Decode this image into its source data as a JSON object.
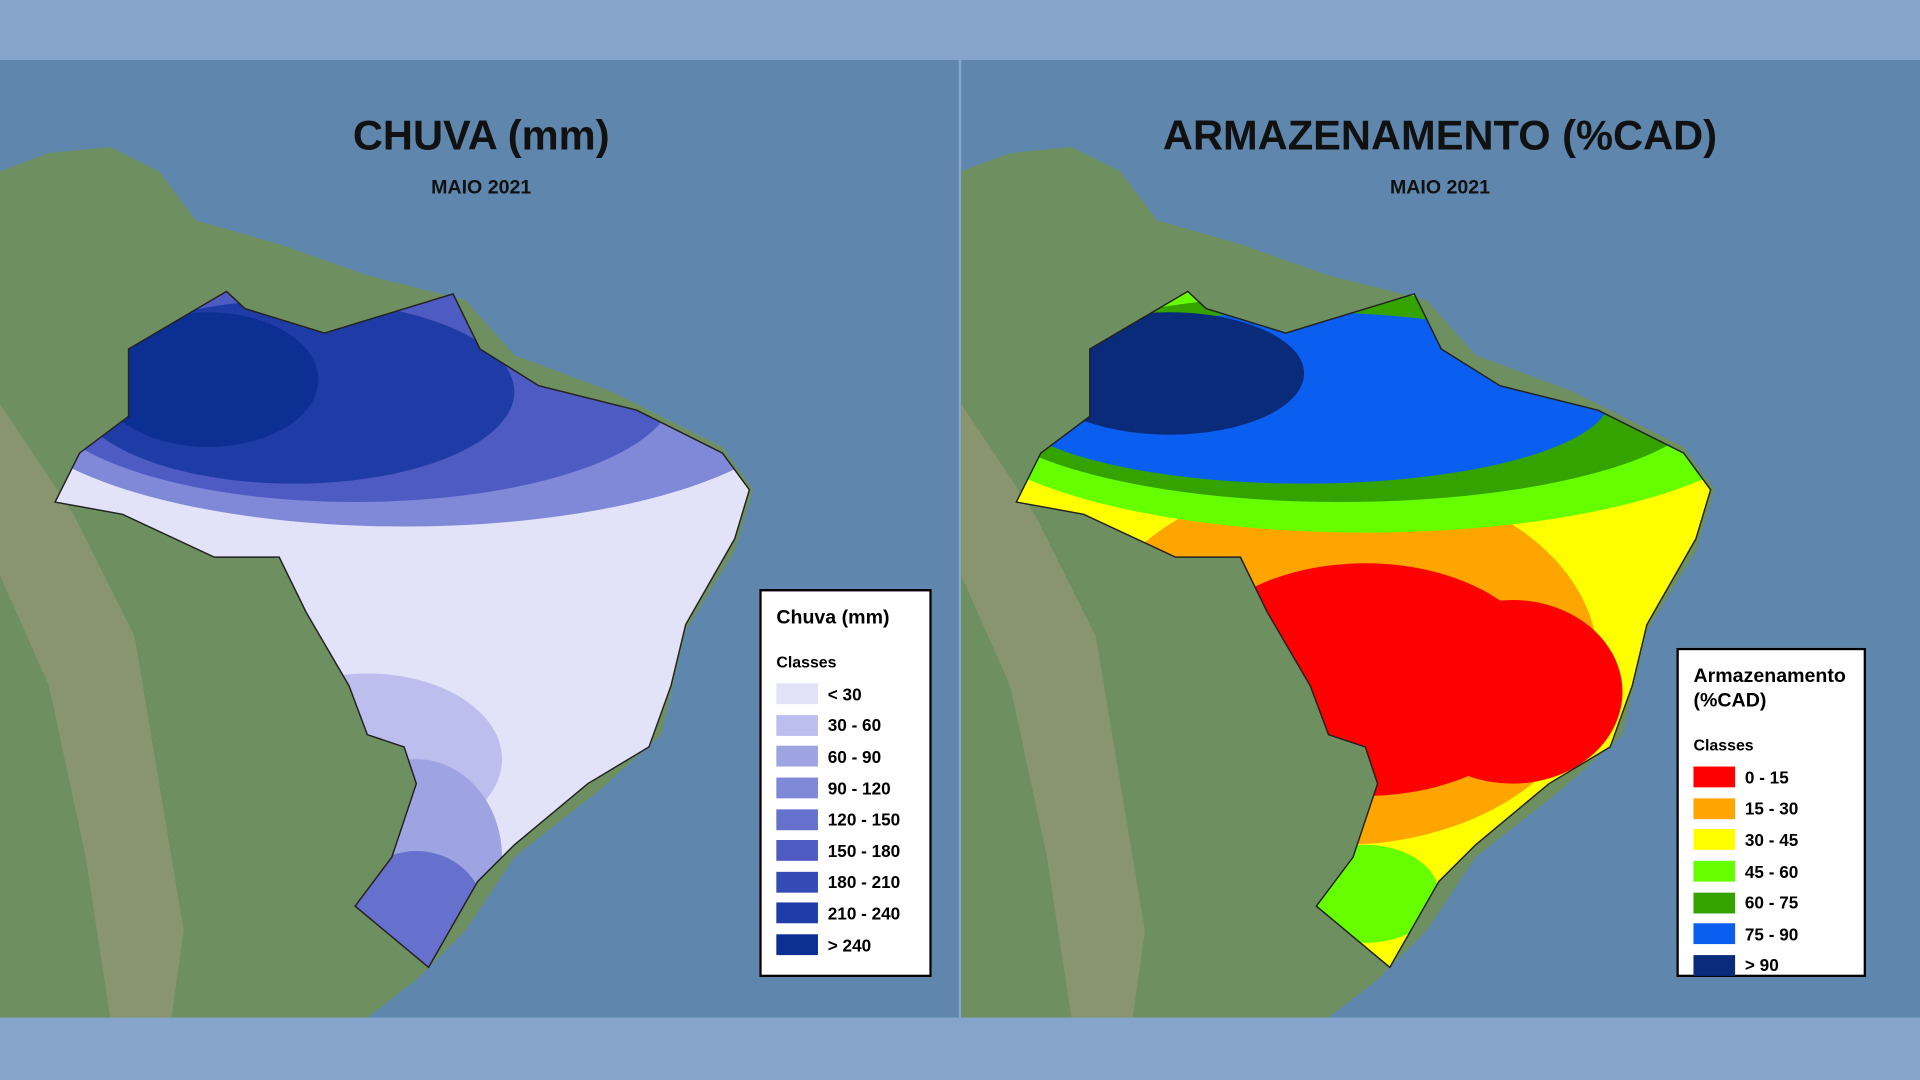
{
  "panels": [
    {
      "title": "CHUVA (mm)",
      "subtitle": "MAIO 2021",
      "legend": {
        "title": "Chuva (mm)",
        "subtitle": "Classes",
        "items": [
          {
            "label": "< 30",
            "color": "#e2e2f8"
          },
          {
            "label": "30 - 60",
            "color": "#bcbfee"
          },
          {
            "label": "60 - 90",
            "color": "#9ea3e2"
          },
          {
            "label": "90 - 120",
            "color": "#8088d8"
          },
          {
            "label": "120 - 150",
            "color": "#6670cd"
          },
          {
            "label": "150 - 180",
            "color": "#4e5bc3"
          },
          {
            "label": "180 - 210",
            "color": "#344ab5"
          },
          {
            "label": "210 - 240",
            "color": "#1f3ca6"
          },
          {
            "label": "> 240",
            "color": "#0c2f94"
          }
        ]
      }
    },
    {
      "title": "ARMAZENAMENTO (%CAD)",
      "subtitle": "MAIO 2021",
      "legend": {
        "title": "Armazenamento (%CAD)",
        "subtitle": "Classes",
        "items": [
          {
            "label": "0 - 15",
            "color": "#ff0000"
          },
          {
            "label": "15 - 30",
            "color": "#ffa500"
          },
          {
            "label": "30 - 45",
            "color": "#ffff00"
          },
          {
            "label": "45 - 60",
            "color": "#66ff00"
          },
          {
            "label": "60 - 75",
            "color": "#34a300"
          },
          {
            "label": "75 - 90",
            "color": "#0a5ef0"
          },
          {
            "label": "> 90",
            "color": "#0a2a7a"
          }
        ]
      }
    }
  ]
}
